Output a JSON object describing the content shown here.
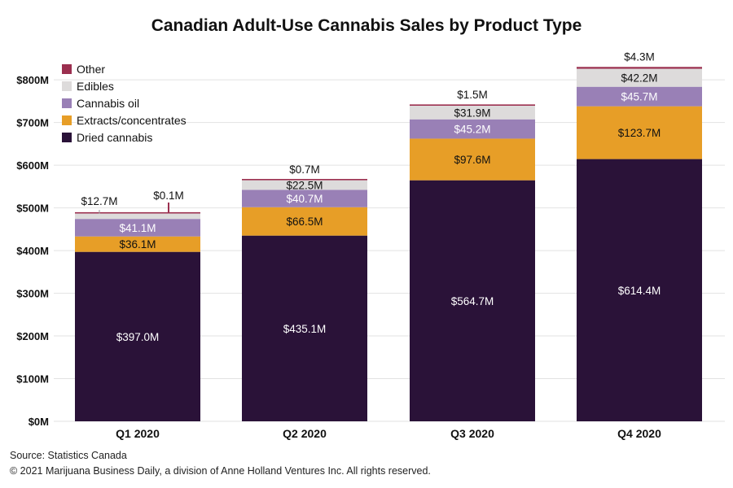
{
  "chart_data": {
    "type": "bar",
    "stacked": true,
    "title": "Canadian Adult-Use Cannabis Sales by Product Type",
    "categories": [
      "Q1 2020",
      "Q2 2020",
      "Q3 2020",
      "Q4 2020"
    ],
    "y_ticks": [
      "$0M",
      "$100M",
      "$200M",
      "$300M",
      "$400M",
      "$500M",
      "$600M",
      "$700M",
      "$800M"
    ],
    "ylim": [
      0,
      850
    ],
    "grid": true,
    "legend_position": "top-left",
    "legend_order": [
      "Other",
      "Edibles",
      "Cannabis oil",
      "Extracts/concentrates",
      "Dried cannabis"
    ],
    "series": [
      {
        "name": "Dried cannabis",
        "color": "#2a1238",
        "label_color": "#ffffff",
        "values": [
          397.0,
          435.1,
          564.7,
          614.4
        ],
        "labels": [
          "$397.0M",
          "$435.1M",
          "$564.7M",
          "$614.4M"
        ]
      },
      {
        "name": "Extracts/concentrates",
        "color": "#e79e27",
        "label_color": "#111111",
        "values": [
          36.1,
          66.5,
          97.6,
          123.7
        ],
        "labels": [
          "$36.1M",
          "$66.5M",
          "$97.6M",
          "$123.7M"
        ]
      },
      {
        "name": "Cannabis oil",
        "color": "#9980b6",
        "label_color": "#ffffff",
        "values": [
          41.1,
          40.7,
          45.2,
          45.7
        ],
        "labels": [
          "$41.1M",
          "$40.7M",
          "$45.2M",
          "$45.7M"
        ]
      },
      {
        "name": "Edibles",
        "color": "#dddbdb",
        "label_color": "#111111",
        "values": [
          12.7,
          22.5,
          31.9,
          42.2
        ],
        "labels": [
          "$12.7M",
          "$22.5M",
          "$31.9M",
          "$42.2M"
        ]
      },
      {
        "name": "Other",
        "color": "#9b2f4f",
        "label_color": "#111111",
        "values": [
          0.1,
          0.7,
          1.5,
          4.3
        ],
        "labels": [
          "$0.1M",
          "$0.7M",
          "$1.5M",
          "$4.3M"
        ]
      }
    ]
  },
  "footer": {
    "source": "Source: Statistics Canada",
    "copyright": "© 2021 Marijuana Business Daily, a division of Anne Holland Ventures Inc. All rights reserved."
  }
}
